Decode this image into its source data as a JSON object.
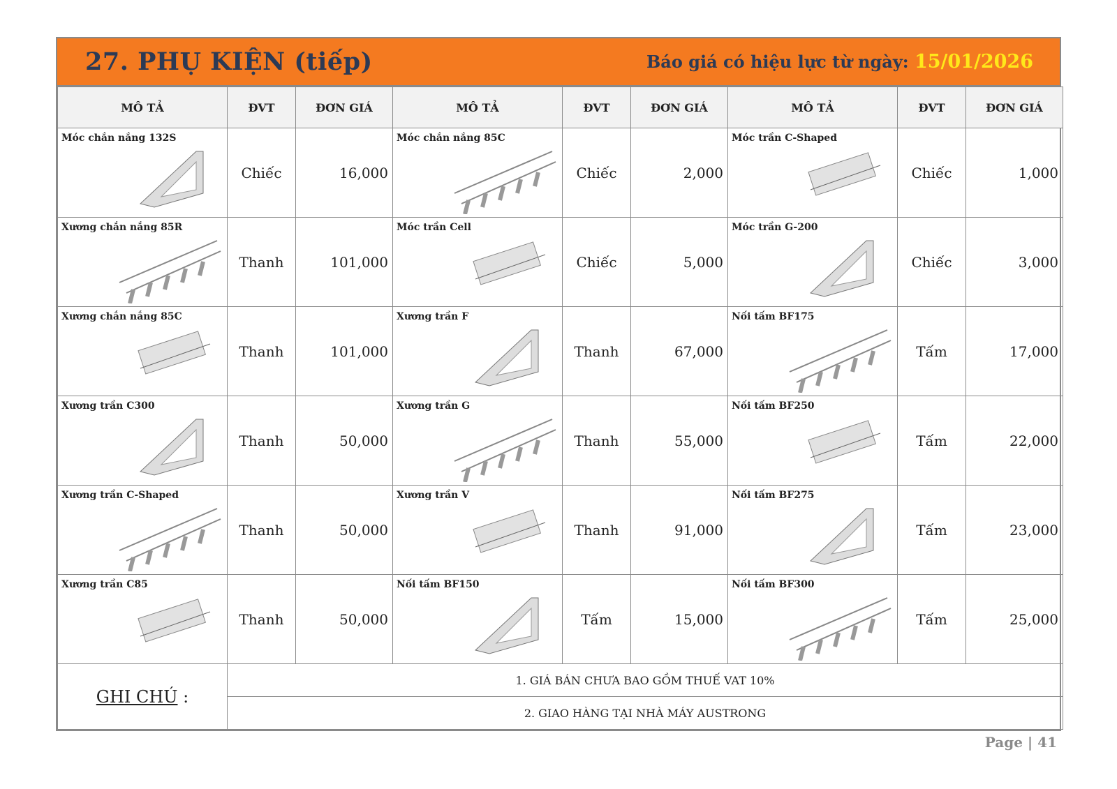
{
  "banner": {
    "title": "27. PHỤ KIỆN (tiếp)",
    "valid_label": "Báo giá có hiệu lực từ ngày:",
    "valid_date": "15/01/2026"
  },
  "colors": {
    "banner": "#f47a20",
    "title": "#2c3a55",
    "date": "#ffe81a"
  },
  "headers": {
    "desc": "MÔ TẢ",
    "unit": "ĐVT",
    "price": "ĐƠN GIÁ"
  },
  "rows": [
    [
      {
        "name": "Móc chắn nắng 132S",
        "unit": "Chiếc",
        "price": "16,000"
      },
      {
        "name": "Móc chắn nắng 85C",
        "unit": "Chiếc",
        "price": "2,000"
      },
      {
        "name": "Móc trần C-Shaped",
        "unit": "Chiếc",
        "price": "1,000"
      }
    ],
    [
      {
        "name": "Xương chắn nắng 85R",
        "unit": "Thanh",
        "price": "101,000"
      },
      {
        "name": "Móc trần Cell",
        "unit": "Chiếc",
        "price": "5,000"
      },
      {
        "name": "Móc trần G-200",
        "unit": "Chiếc",
        "price": "3,000"
      }
    ],
    [
      {
        "name": "Xương chắn nắng 85C",
        "unit": "Thanh",
        "price": "101,000"
      },
      {
        "name": "Xương trần F",
        "unit": "Thanh",
        "price": "67,000"
      },
      {
        "name": "Nối tấm BF175",
        "unit": "Tấm",
        "price": "17,000"
      }
    ],
    [
      {
        "name": "Xương trần C300",
        "unit": "Thanh",
        "price": "50,000"
      },
      {
        "name": "Xương trần G",
        "unit": "Thanh",
        "price": "55,000"
      },
      {
        "name": "Nối tấm BF250",
        "unit": "Tấm",
        "price": "22,000"
      }
    ],
    [
      {
        "name": "Xương trần C-Shaped",
        "unit": "Thanh",
        "price": "50,000"
      },
      {
        "name": "Xương trần V",
        "unit": "Thanh",
        "price": "91,000"
      },
      {
        "name": "Nối tấm BF275",
        "unit": "Tấm",
        "price": "23,000"
      }
    ],
    [
      {
        "name": "Xương trần C85",
        "unit": "Thanh",
        "price": "50,000"
      },
      {
        "name": "Nối tấm BF150",
        "unit": "Tấm",
        "price": "15,000"
      },
      {
        "name": "Nối tấm BF300",
        "unit": "Tấm",
        "price": "25,000"
      }
    ]
  ],
  "notes": {
    "label": "GHI CHÚ",
    "colon": " :",
    "items": [
      "1. GIÁ BÁN CHƯA BAO GỒM THUẾ VAT 10%",
      "2. GIAO HÀNG TẠI NHÀ MÁY AUSTRONG"
    ]
  },
  "footer": {
    "page": "Page | 41"
  }
}
